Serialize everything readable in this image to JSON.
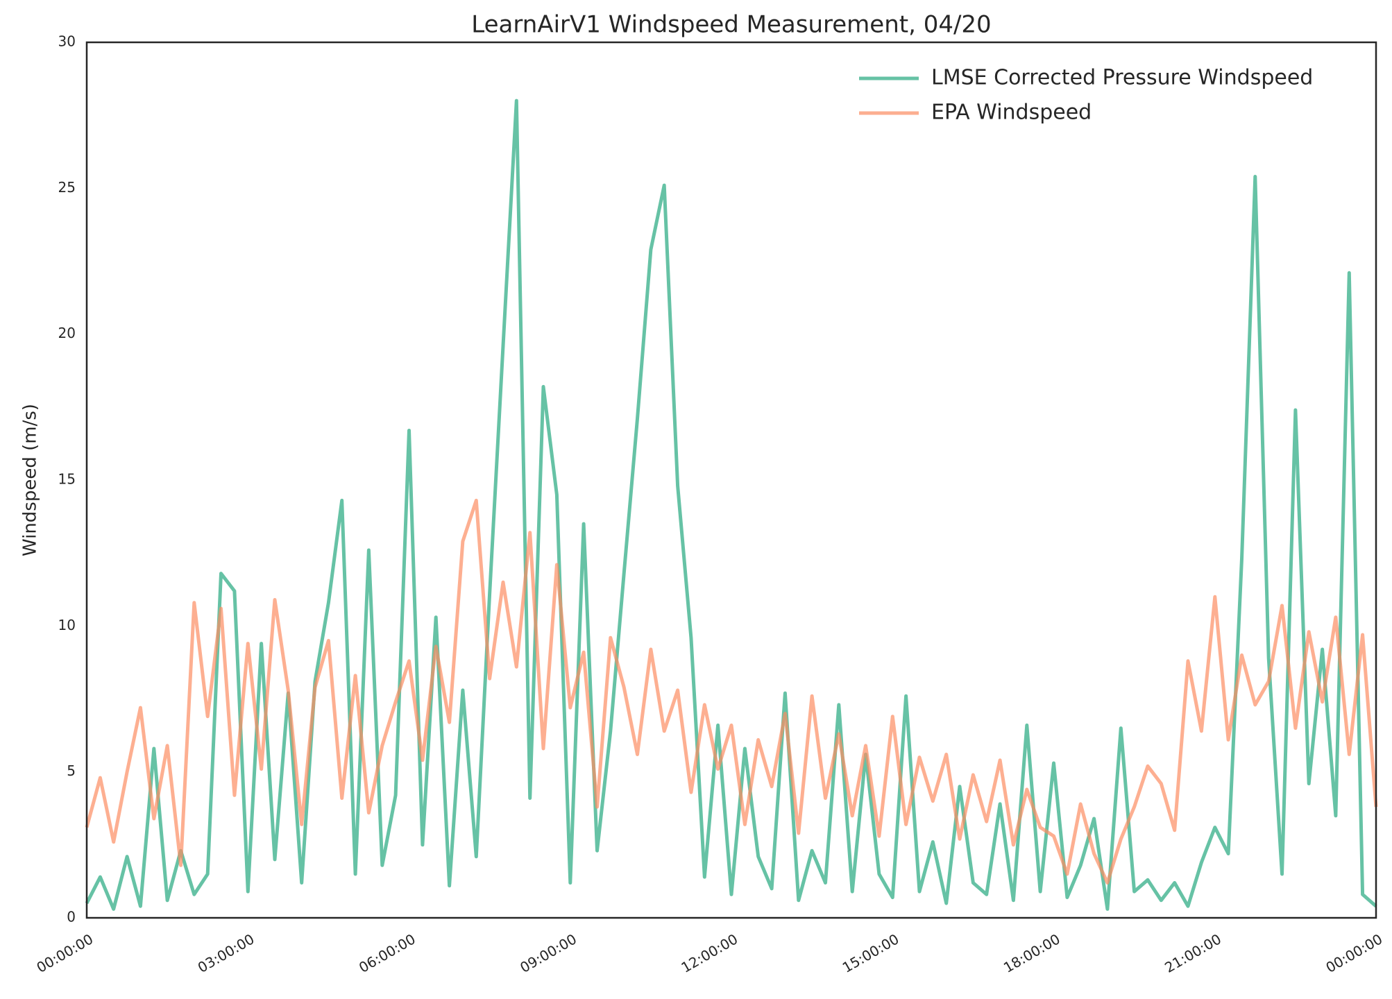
{
  "chart_data": {
    "type": "line",
    "title": "LearnAirV1 Windspeed Measurement, 04/20",
    "ylabel": "Windspeed (m/s)",
    "x": [
      0,
      0.25,
      0.5,
      0.75,
      1,
      1.25,
      1.5,
      1.75,
      2,
      2.25,
      2.5,
      2.75,
      3,
      3.25,
      3.5,
      3.75,
      4,
      4.25,
      4.5,
      4.75,
      5,
      5.25,
      5.5,
      5.75,
      6,
      6.25,
      6.5,
      6.75,
      7,
      7.25,
      7.5,
      7.75,
      8,
      8.25,
      8.5,
      8.75,
      9,
      9.25,
      9.5,
      9.75,
      10,
      10.25,
      10.5,
      10.75,
      11,
      11.25,
      11.5,
      11.75,
      12,
      12.25,
      12.5,
      12.75,
      13,
      13.25,
      13.5,
      13.75,
      14,
      14.25,
      14.5,
      14.75,
      15,
      15.25,
      15.5,
      15.75,
      16,
      16.25,
      16.5,
      16.75,
      17,
      17.25,
      17.5,
      17.75,
      18,
      18.25,
      18.5,
      18.75,
      19,
      19.25,
      19.5,
      19.75,
      20,
      20.25,
      20.5,
      20.75,
      21,
      21.25,
      21.5,
      21.75,
      22,
      22.25,
      22.5,
      22.75,
      23,
      23.25,
      23.5,
      23.75,
      24
    ],
    "series": [
      {
        "name": "LMSE Corrected Pressure Windspeed",
        "color": "#66c2a5",
        "values": [
          0.5,
          1.4,
          0.3,
          2.1,
          0.4,
          5.8,
          0.6,
          2.3,
          0.8,
          1.5,
          11.8,
          11.2,
          0.9,
          9.4,
          2.0,
          7.7,
          1.2,
          8.1,
          10.8,
          14.3,
          1.5,
          12.6,
          1.8,
          4.2,
          16.7,
          2.5,
          10.3,
          1.1,
          7.8,
          2.1,
          11.1,
          19.6,
          28.0,
          4.1,
          18.2,
          14.5,
          1.2,
          13.5,
          2.3,
          6.4,
          11.8,
          17.1,
          22.9,
          25.1,
          14.8,
          9.6,
          1.4,
          6.6,
          0.8,
          5.8,
          2.1,
          1.0,
          7.7,
          0.6,
          2.3,
          1.2,
          7.3,
          0.9,
          5.6,
          1.5,
          0.7,
          7.6,
          0.9,
          2.6,
          0.5,
          4.5,
          1.2,
          0.8,
          3.9,
          0.6,
          6.6,
          0.9,
          5.3,
          0.7,
          1.8,
          3.4,
          0.3,
          6.5,
          0.9,
          1.3,
          0.6,
          1.2,
          0.4,
          1.9,
          3.1,
          2.2,
          12.3,
          25.4,
          8.9,
          1.5,
          17.4,
          4.6,
          9.2,
          3.5,
          22.1,
          0.8,
          0.4
        ]
      },
      {
        "name": "EPA Windspeed",
        "color": "#fc8d62",
        "values": [
          3.1,
          4.8,
          2.6,
          5.0,
          7.2,
          3.4,
          5.9,
          1.8,
          10.8,
          6.9,
          10.6,
          4.2,
          9.4,
          5.1,
          10.9,
          7.8,
          3.2,
          7.9,
          9.5,
          4.1,
          8.3,
          3.6,
          5.9,
          7.4,
          8.8,
          5.4,
          9.3,
          6.7,
          12.9,
          14.3,
          8.2,
          11.5,
          8.6,
          13.2,
          5.8,
          12.1,
          7.2,
          9.1,
          3.8,
          9.6,
          7.9,
          5.6,
          9.2,
          6.4,
          7.8,
          4.3,
          7.3,
          5.1,
          6.6,
          3.2,
          6.1,
          4.5,
          7.0,
          2.9,
          7.6,
          4.1,
          6.3,
          3.5,
          5.9,
          2.8,
          6.9,
          3.2,
          5.5,
          4.0,
          5.6,
          2.7,
          4.9,
          3.3,
          5.4,
          2.5,
          4.4,
          3.1,
          2.8,
          1.5,
          3.9,
          2.2,
          1.2,
          2.7,
          3.8,
          5.2,
          4.6,
          3.0,
          8.8,
          6.4,
          11.0,
          6.1,
          9.0,
          7.3,
          8.1,
          10.7,
          6.5,
          9.8,
          7.4,
          10.3,
          5.6,
          9.7,
          3.8
        ]
      }
    ],
    "xlim": [
      0,
      24
    ],
    "xticks": [
      {
        "value": 0,
        "label": "00:00:00"
      },
      {
        "value": 3,
        "label": "03:00:00"
      },
      {
        "value": 6,
        "label": "06:00:00"
      },
      {
        "value": 9,
        "label": "09:00:00"
      },
      {
        "value": 12,
        "label": "12:00:00"
      },
      {
        "value": 15,
        "label": "15:00:00"
      },
      {
        "value": 18,
        "label": "18:00:00"
      },
      {
        "value": 21,
        "label": "21:00:00"
      },
      {
        "value": 24,
        "label": "00:00:00"
      }
    ],
    "ylim": [
      0,
      30
    ],
    "yticks": [
      0,
      5,
      10,
      15,
      20,
      25,
      30
    ],
    "grid": false,
    "legend": "upper right"
  }
}
